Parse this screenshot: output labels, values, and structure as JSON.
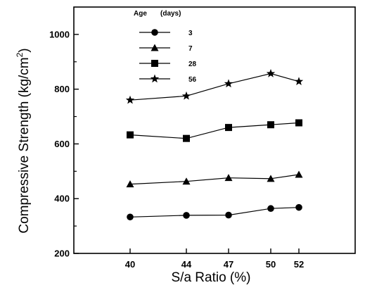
{
  "chart_data": {
    "type": "line",
    "xlabel": "S/a  Ratio (%)",
    "ylabel": "Compressive  Strength (kg/cm",
    "ylabel_superscript": "2",
    "ylabel_close": ")",
    "categories": [
      "40",
      "44",
      "47",
      "50",
      "52"
    ],
    "ylim": [
      200,
      1100
    ],
    "yticks": [
      200,
      400,
      600,
      800,
      1000
    ],
    "legend": {
      "title": "Age",
      "title_unit": "(days)",
      "position": "top-left"
    },
    "series": [
      {
        "name": "3",
        "marker": "circle",
        "values": [
          333,
          339,
          340,
          364,
          368
        ]
      },
      {
        "name": "7",
        "marker": "triangle",
        "values": [
          453,
          463,
          476,
          473,
          488
        ]
      },
      {
        "name": "28",
        "marker": "square",
        "values": [
          633,
          620,
          660,
          670,
          677
        ]
      },
      {
        "name": "56",
        "marker": "star",
        "values": [
          760,
          775,
          820,
          857,
          828
        ]
      }
    ],
    "grid": false
  }
}
